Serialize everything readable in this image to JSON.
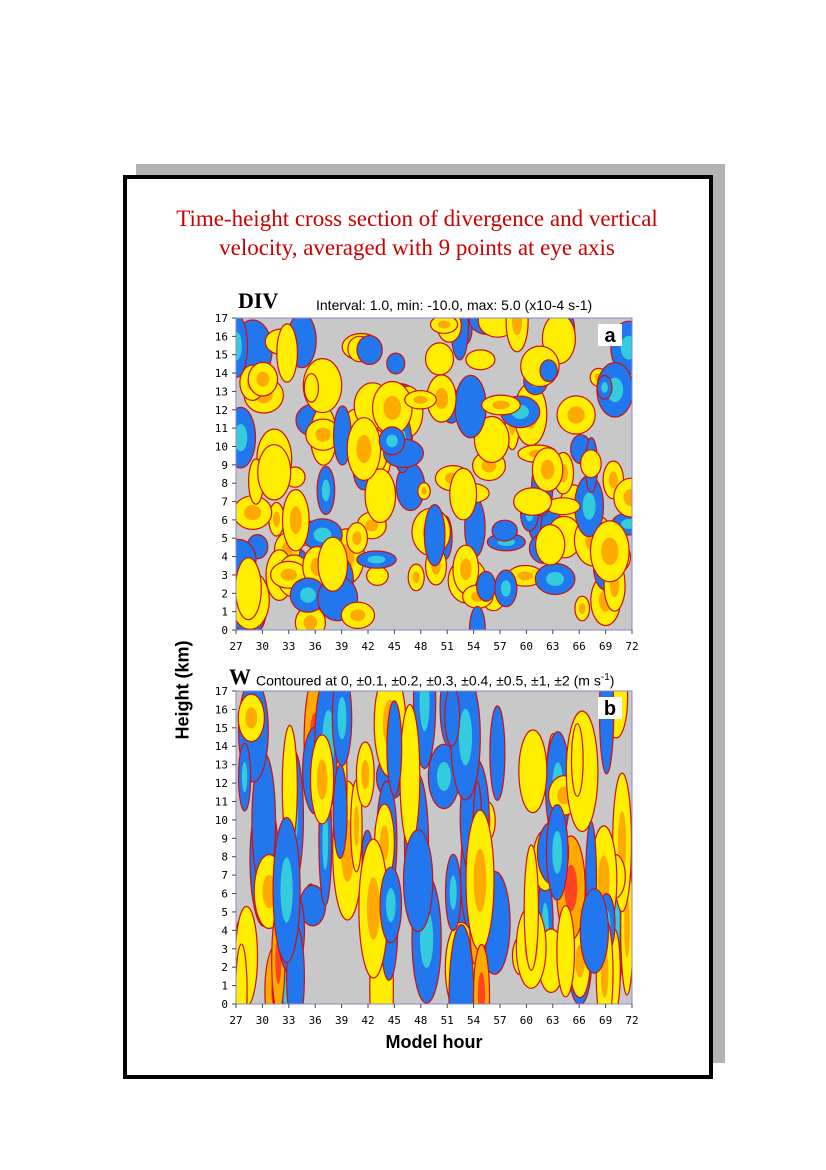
{
  "title_line1": "Time-height cross section of divergence and vertical",
  "title_line2": "velocity, averaged with 9 points at eye axis",
  "ylabel": "Height (km)",
  "xlabel": "Model hour",
  "chart_data": [
    {
      "type": "heatmap",
      "label": "DIV",
      "panel_letter": "a",
      "info": "Interval: 1.0, min: -10.0, max: 5.0 (x10-4 s-1)",
      "x_ticks": [
        "27",
        "30",
        "33",
        "36",
        "39",
        "42",
        "45",
        "48",
        "51",
        "54",
        "57",
        "60",
        "63",
        "66",
        "69",
        "72"
      ],
      "y_ticks": [
        "0",
        "1",
        "2",
        "3",
        "4",
        "5",
        "6",
        "7",
        "8",
        "9",
        "10",
        "11",
        "12",
        "13",
        "14",
        "15",
        "16",
        "17"
      ],
      "xlim": [
        27,
        72
      ],
      "ylim": [
        0,
        17
      ],
      "colors": {
        "positive": "#ffee00",
        "positive_strong": "#ffaa00",
        "positive_max": "#ff4422",
        "negative": "#2277ee",
        "negative_strong": "#33ccdd",
        "zero": "#c8c8c8",
        "contour": "#cc1111"
      }
    },
    {
      "type": "heatmap",
      "label": "W",
      "panel_letter": "b",
      "info_prefix": "Contoured at 0, ±0.1, ±0.2, ±0.3, ±0.4, ±0.5, ±1, ±2 (m s",
      "info_sup": "-1",
      "info_suffix": ")",
      "x_ticks": [
        "27",
        "30",
        "33",
        "36",
        "39",
        "42",
        "45",
        "48",
        "51",
        "54",
        "57",
        "60",
        "63",
        "66",
        "69",
        "72"
      ],
      "y_ticks": [
        "0",
        "1",
        "2",
        "3",
        "4",
        "5",
        "6",
        "7",
        "8",
        "9",
        "10",
        "11",
        "12",
        "13",
        "14",
        "15",
        "16",
        "17"
      ],
      "xlim": [
        27,
        72
      ],
      "ylim": [
        0,
        17
      ],
      "colors": {
        "positive": "#ffee00",
        "positive_strong": "#ffaa00",
        "positive_max": "#ff4422",
        "negative": "#2277ee",
        "negative_strong": "#33ccdd",
        "zero": "#c8c8c8",
        "contour": "#cc1111"
      }
    }
  ]
}
